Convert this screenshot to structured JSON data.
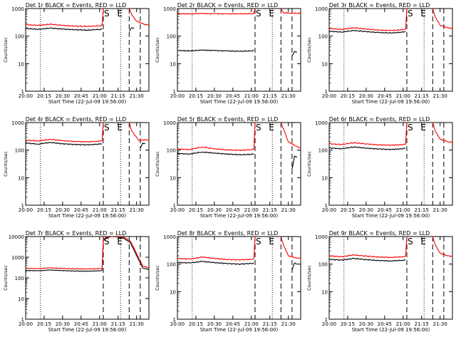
{
  "common": {
    "xlabel": "Start Time (22-Jul-09 19:56:00)",
    "ylabel": "Counts/sec",
    "x_ticks": [
      "20:00",
      "20:15",
      "20:30",
      "20:45",
      "21:00",
      "21:15",
      "21:30"
    ],
    "x_tick_minutes": [
      0,
      15,
      30,
      45,
      60,
      75,
      90
    ],
    "x_range_minutes": [
      0,
      100
    ],
    "y_scale": "log",
    "marker_S": "S",
    "marker_E": "E",
    "dotted_lines_minutes": [
      12,
      77
    ],
    "dashed_lines_minutes": [
      63,
      84,
      93
    ],
    "colors": {
      "events": "#000000",
      "lld": "#ff0000"
    }
  },
  "chart_data": [
    {
      "type": "line",
      "title": "Det 1r BLACK = Events, RED = LLD",
      "ylim": [
        1,
        1000
      ],
      "y_ticks": [
        "1",
        "10",
        "100",
        "1000"
      ],
      "series": [
        {
          "name": "Events",
          "color": "#000000",
          "x": [
            0,
            10,
            20,
            30,
            40,
            50,
            60,
            62
          ],
          "y": [
            190,
            175,
            195,
            180,
            170,
            165,
            175,
            180
          ]
        },
        {
          "name": "Events",
          "color": "#000000",
          "x": [
            84,
            86,
            88
          ],
          "y": [
            150,
            200,
            190
          ]
        },
        {
          "name": "LLD",
          "color": "#ff0000",
          "x": [
            0,
            10,
            20,
            30,
            40,
            50,
            60,
            62,
            63
          ],
          "y": [
            260,
            245,
            270,
            245,
            230,
            225,
            235,
            245,
            1000
          ]
        },
        {
          "name": "LLD",
          "color": "#ff0000",
          "x": [
            84,
            86,
            90,
            96,
            100
          ],
          "y": [
            1000,
            600,
            350,
            270,
            250
          ]
        }
      ]
    },
    {
      "type": "line",
      "title": "Det 2r BLACK = Events, RED = LLD",
      "ylim": [
        1,
        1000
      ],
      "y_ticks": [
        "1",
        "10",
        "100",
        "1000"
      ],
      "series": [
        {
          "name": "Events",
          "color": "#000000",
          "x": [
            0,
            10,
            20,
            30,
            40,
            50,
            60,
            62
          ],
          "y": [
            30,
            29,
            31,
            30,
            29,
            28,
            29,
            30
          ]
        },
        {
          "name": "Events",
          "color": "#000000",
          "x": [
            93,
            95,
            97
          ],
          "y": [
            18,
            28,
            26
          ]
        },
        {
          "name": "LLD",
          "color": "#ff0000",
          "x": [
            0,
            10,
            20,
            30,
            40,
            50,
            60,
            62,
            63
          ],
          "y": [
            650,
            640,
            660,
            650,
            640,
            645,
            650,
            660,
            1000
          ]
        },
        {
          "name": "LLD",
          "color": "#ff0000",
          "x": [
            84,
            86,
            92,
            100
          ],
          "y": [
            1000,
            700,
            680,
            670
          ]
        }
      ]
    },
    {
      "type": "line",
      "title": "Det 3r BLACK = Events, RED = LLD",
      "ylim": [
        1,
        1000
      ],
      "y_ticks": [
        "1",
        "10",
        "100",
        "1000"
      ],
      "series": [
        {
          "name": "Events",
          "color": "#000000",
          "x": [
            0,
            10,
            20,
            30,
            40,
            50,
            60,
            62
          ],
          "y": [
            150,
            140,
            160,
            145,
            135,
            130,
            140,
            145
          ]
        },
        {
          "name": "LLD",
          "color": "#ff0000",
          "x": [
            0,
            10,
            20,
            30,
            40,
            50,
            60,
            62,
            63
          ],
          "y": [
            190,
            175,
            200,
            180,
            165,
            160,
            170,
            180,
            1000
          ]
        },
        {
          "name": "LLD",
          "color": "#ff0000",
          "x": [
            84,
            86,
            90,
            96,
            100
          ],
          "y": [
            1000,
            500,
            250,
            200,
            190
          ]
        }
      ]
    },
    {
      "type": "line",
      "title": "Det 4r BLACK = Events, RED = LLD",
      "ylim": [
        1,
        1000
      ],
      "y_ticks": [
        "1",
        "10",
        "100",
        "1000"
      ],
      "series": [
        {
          "name": "Events",
          "color": "#000000",
          "x": [
            0,
            10,
            20,
            30,
            40,
            50,
            60,
            62
          ],
          "y": [
            180,
            165,
            190,
            170,
            160,
            155,
            165,
            170
          ]
        },
        {
          "name": "Events",
          "color": "#000000",
          "x": [
            93,
            95,
            97
          ],
          "y": [
            120,
            180,
            170
          ]
        },
        {
          "name": "LLD",
          "color": "#ff0000",
          "x": [
            0,
            10,
            20,
            30,
            40,
            50,
            60,
            62,
            63
          ],
          "y": [
            230,
            215,
            245,
            220,
            205,
            200,
            210,
            220,
            1000
          ]
        },
        {
          "name": "LLD",
          "color": "#ff0000",
          "x": [
            84,
            86,
            92,
            97,
            100
          ],
          "y": [
            1000,
            500,
            220,
            240,
            230
          ]
        }
      ]
    },
    {
      "type": "line",
      "title": "Det 5r BLACK = Events, RED = LLD",
      "ylim": [
        1,
        1000
      ],
      "y_ticks": [
        "1",
        "10",
        "100",
        "1000"
      ],
      "series": [
        {
          "name": "Events",
          "color": "#000000",
          "x": [
            0,
            10,
            20,
            30,
            40,
            50,
            60,
            62
          ],
          "y": [
            75,
            72,
            85,
            78,
            72,
            68,
            70,
            72
          ]
        },
        {
          "name": "Events",
          "color": "#000000",
          "x": [
            93,
            95,
            97
          ],
          "y": [
            20,
            60,
            55
          ]
        },
        {
          "name": "LLD",
          "color": "#ff0000",
          "x": [
            0,
            10,
            20,
            30,
            40,
            50,
            60,
            62,
            63
          ],
          "y": [
            110,
            105,
            130,
            112,
            102,
            98,
            103,
            108,
            1000
          ]
        },
        {
          "name": "LLD",
          "color": "#ff0000",
          "x": [
            84,
            86,
            90,
            96,
            100
          ],
          "y": [
            1000,
            600,
            200,
            140,
            120
          ]
        }
      ]
    },
    {
      "type": "line",
      "title": "Det 6r BLACK = Events, RED = LLD",
      "ylim": [
        1,
        1000
      ],
      "y_ticks": [
        "1",
        "10",
        "100",
        "1000"
      ],
      "series": [
        {
          "name": "Events",
          "color": "#000000",
          "x": [
            0,
            10,
            20,
            30,
            40,
            50,
            60,
            62
          ],
          "y": [
            120,
            112,
            130,
            118,
            110,
            105,
            112,
            118
          ]
        },
        {
          "name": "LLD",
          "color": "#ff0000",
          "x": [
            0,
            10,
            20,
            30,
            40,
            50,
            60,
            62,
            63
          ],
          "y": [
            170,
            160,
            185,
            168,
            155,
            150,
            158,
            165,
            1000
          ]
        },
        {
          "name": "LLD",
          "color": "#ff0000",
          "x": [
            84,
            86,
            90,
            96,
            100
          ],
          "y": [
            1000,
            500,
            250,
            200,
            190
          ]
        }
      ]
    },
    {
      "type": "line",
      "title": "Det 7r BLACK = Events, RED = LLD",
      "ylim": [
        1,
        10000
      ],
      "y_ticks": [
        "1",
        "10",
        "100",
        "1000",
        "10000"
      ],
      "series": [
        {
          "name": "Events",
          "color": "#000000",
          "x": [
            0,
            10,
            20,
            30,
            40,
            50,
            60,
            62
          ],
          "y": [
            230,
            220,
            240,
            225,
            215,
            210,
            220,
            225
          ]
        },
        {
          "name": "Events",
          "color": "#000000",
          "x": [
            62,
            63,
            66,
            70,
            75,
            80,
            85,
            90,
            95,
            100
          ],
          "y": [
            225,
            6000,
            9000,
            10000,
            9500,
            8000,
            5000,
            1200,
            300,
            250
          ]
        },
        {
          "name": "LLD",
          "color": "#ff0000",
          "x": [
            0,
            10,
            20,
            30,
            40,
            50,
            60,
            62
          ],
          "y": [
            290,
            280,
            305,
            285,
            275,
            270,
            280,
            285
          ]
        },
        {
          "name": "LLD",
          "color": "#ff0000",
          "x": [
            62,
            63,
            66,
            70,
            75,
            80,
            85,
            90,
            95,
            100
          ],
          "y": [
            285,
            7000,
            10000,
            10000,
            10000,
            9000,
            6000,
            1500,
            380,
            300
          ]
        }
      ]
    },
    {
      "type": "line",
      "title": "Det 8r BLACK = Events, RED = LLD",
      "ylim": [
        1,
        1000
      ],
      "y_ticks": [
        "1",
        "10",
        "100",
        "1000"
      ],
      "series": [
        {
          "name": "Events",
          "color": "#000000",
          "x": [
            0,
            10,
            20,
            30,
            40,
            50,
            60,
            62
          ],
          "y": [
            115,
            110,
            125,
            113,
            105,
            100,
            106,
            110
          ]
        },
        {
          "name": "Events",
          "color": "#000000",
          "x": [
            93,
            95,
            97
          ],
          "y": [
            60,
            110,
            100
          ]
        },
        {
          "name": "LLD",
          "color": "#ff0000",
          "x": [
            0,
            10,
            20,
            30,
            40,
            50,
            60,
            62,
            63
          ],
          "y": [
            160,
            152,
            180,
            160,
            148,
            143,
            150,
            158,
            1000
          ]
        },
        {
          "name": "LLD",
          "color": "#ff0000",
          "x": [
            84,
            86,
            90,
            96,
            100
          ],
          "y": [
            1000,
            500,
            200,
            170,
            160
          ]
        }
      ]
    },
    {
      "type": "line",
      "title": "Det 9r BLACK = Events, RED = LLD",
      "ylim": [
        1,
        1000
      ],
      "y_ticks": [
        "1",
        "10",
        "100",
        "1000"
      ],
      "series": [
        {
          "name": "Events",
          "color": "#000000",
          "x": [
            0,
            10,
            20,
            30,
            40,
            50,
            60,
            62
          ],
          "y": [
            150,
            140,
            160,
            145,
            135,
            130,
            138,
            145
          ]
        },
        {
          "name": "LLD",
          "color": "#ff0000",
          "x": [
            0,
            10,
            20,
            30,
            40,
            50,
            60,
            62,
            63
          ],
          "y": [
            200,
            185,
            215,
            195,
            180,
            175,
            185,
            195,
            1000
          ]
        },
        {
          "name": "LLD",
          "color": "#ff0000",
          "x": [
            84,
            86,
            90,
            96,
            100
          ],
          "y": [
            1000,
            500,
            250,
            200,
            190
          ]
        }
      ]
    }
  ]
}
